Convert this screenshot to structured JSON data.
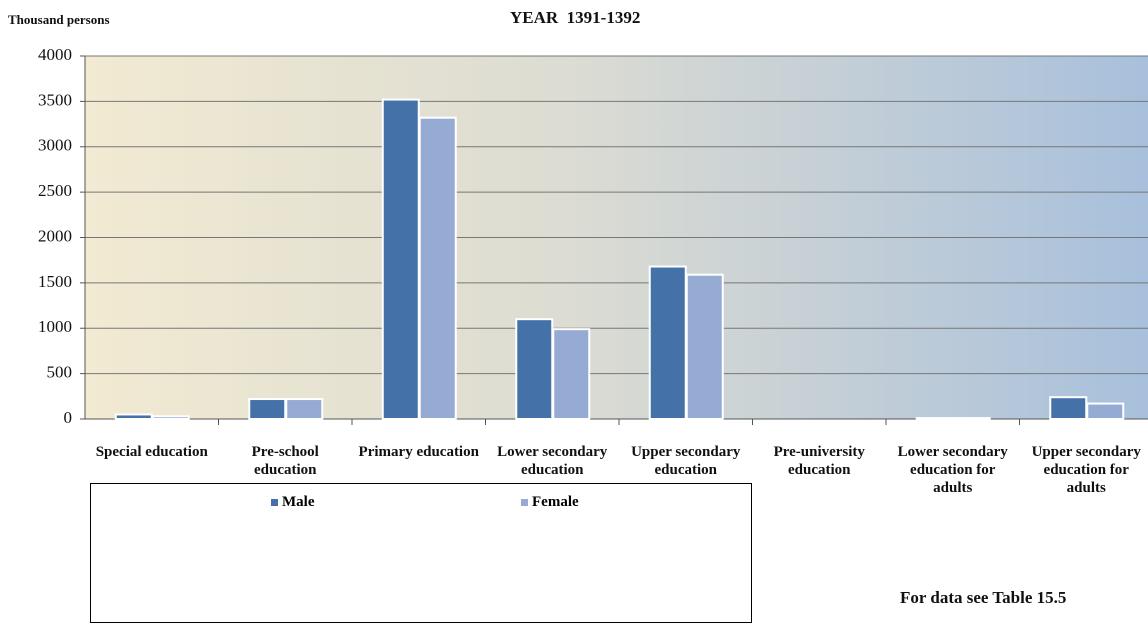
{
  "chart_data": {
    "type": "bar",
    "title": "YEAR  1391-1392",
    "y_label": "Thousand persons",
    "note": "For data see Table 15.5",
    "categories": [
      "Special education",
      "Pre-school education",
      "Primary education",
      "Lower secondary education",
      "Upper secondary education",
      "Pre-university education",
      "Lower secondary education for adults",
      "Upper secondary education for adults"
    ],
    "series": [
      {
        "name": "Male",
        "color": "#4472a8",
        "values": [
          50,
          220,
          3520,
          1100,
          1680,
          0,
          10,
          240
        ]
      },
      {
        "name": "Female",
        "color": "#95abd4",
        "values": [
          30,
          220,
          3320,
          990,
          1590,
          0,
          10,
          170
        ]
      }
    ],
    "ylim": [
      0,
      4000
    ],
    "yticks": [
      0,
      500,
      1000,
      1500,
      2000,
      2500,
      3000,
      3500,
      4000
    ],
    "grid": true
  }
}
